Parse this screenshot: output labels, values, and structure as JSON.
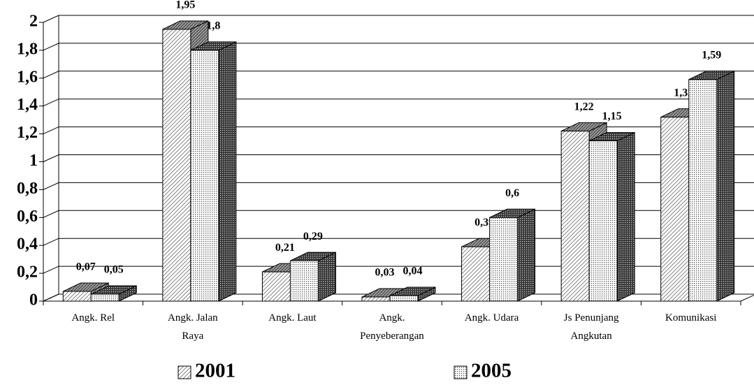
{
  "chart_data": {
    "type": "bar3d",
    "categories": [
      "Angk. Rel",
      "Angk. Jalan Raya",
      "Angk. Laut",
      "Angk. Penyeberangan",
      "Angk. Udara",
      "Js Penunjang Angkutan",
      "Komunikasi"
    ],
    "series": [
      {
        "name": "2001",
        "color": "#bbbbbb",
        "values": [
          0.07,
          1.95,
          0.21,
          0.03,
          0.39,
          1.22,
          1.32
        ],
        "value_labels": [
          "0,07",
          "1,95",
          "0,21",
          "0,03",
          "0,39",
          "1,22",
          "1,32"
        ]
      },
      {
        "name": "2005",
        "color": "#eeeeee",
        "values": [
          0.05,
          1.8,
          0.29,
          0.04,
          0.6,
          1.15,
          1.59
        ],
        "value_labels": [
          "0,05",
          "1,8",
          "0,29",
          "0,04",
          "0,6",
          "1,15",
          "1,59"
        ]
      }
    ],
    "ylim": [
      0,
      2
    ],
    "yticks": [
      0,
      {
        "value": 0.2,
        "label": "0,2"
      },
      {
        "value": 0.4,
        "label": "0,4"
      },
      {
        "value": 0.6,
        "label": "0,6"
      },
      {
        "value": 0.8,
        "label": "0,8"
      },
      1,
      {
        "value": 1.2,
        "label": "1,2"
      },
      {
        "value": 1.4,
        "label": "1,4"
      },
      {
        "value": 1.6,
        "label": "1,6"
      },
      {
        "value": 1.8,
        "label": "1,8"
      },
      2
    ],
    "grid": true,
    "legend": "bottom"
  }
}
